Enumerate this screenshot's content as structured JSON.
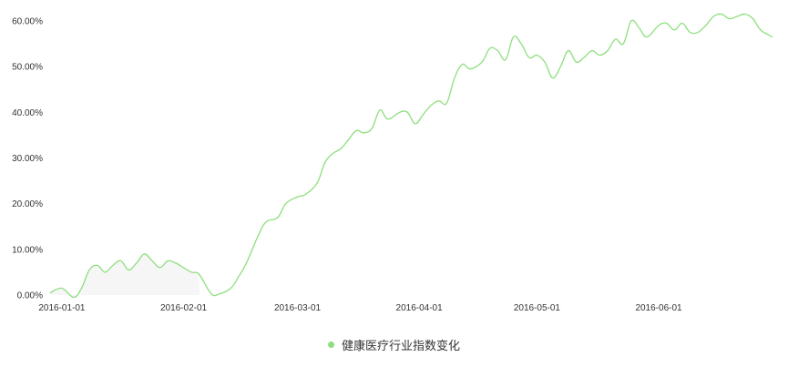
{
  "colors": {
    "line": "#8ddf7d",
    "fill": "#f6f6f6",
    "axis_text": "#333333"
  },
  "chart_data": {
    "type": "line",
    "y_tick_labels": [
      "0.00%",
      "10.00%",
      "20.00%",
      "30.00%",
      "40.00%",
      "50.00%",
      "60.00%"
    ],
    "x_tick_labels": [
      "2016-01-01",
      "2016-02-01",
      "2016-03-01",
      "2016-04-01",
      "2016-05-01",
      "2016-06-01"
    ],
    "x_tick_dates": [
      "2016-01-01",
      "2016-02-01",
      "2016-03-01",
      "2016-04-01",
      "2016-05-01",
      "2016-06-01"
    ],
    "ylim": [
      0,
      60
    ],
    "xlim": [
      "2015-12-29",
      "2016-06-30"
    ],
    "grid": false,
    "legend_position": "bottom",
    "series": [
      {
        "name": "健康医疗行业指数变化",
        "x": [
          "2015-12-29",
          "2016-01-01",
          "2016-01-04",
          "2016-01-06",
          "2016-01-08",
          "2016-01-10",
          "2016-01-12",
          "2016-01-14",
          "2016-01-16",
          "2016-01-18",
          "2016-01-20",
          "2016-01-22",
          "2016-01-24",
          "2016-01-26",
          "2016-01-28",
          "2016-01-30",
          "2016-02-01",
          "2016-02-03",
          "2016-02-05",
          "2016-02-08",
          "2016-02-10",
          "2016-02-13",
          "2016-02-15",
          "2016-02-17",
          "2016-02-20",
          "2016-02-22",
          "2016-02-25",
          "2016-02-27",
          "2016-03-01",
          "2016-03-03",
          "2016-03-06",
          "2016-03-08",
          "2016-03-10",
          "2016-03-12",
          "2016-03-14",
          "2016-03-16",
          "2016-03-18",
          "2016-03-20",
          "2016-03-22",
          "2016-03-24",
          "2016-03-27",
          "2016-03-29",
          "2016-03-31",
          "2016-04-02",
          "2016-04-04",
          "2016-04-06",
          "2016-04-08",
          "2016-04-10",
          "2016-04-12",
          "2016-04-14",
          "2016-04-17",
          "2016-04-19",
          "2016-04-21",
          "2016-04-23",
          "2016-04-25",
          "2016-04-27",
          "2016-04-29",
          "2016-05-01",
          "2016-05-03",
          "2016-05-05",
          "2016-05-07",
          "2016-05-09",
          "2016-05-11",
          "2016-05-13",
          "2016-05-15",
          "2016-05-17",
          "2016-05-19",
          "2016-05-21",
          "2016-05-23",
          "2016-05-25",
          "2016-05-27",
          "2016-05-29",
          "2016-06-01",
          "2016-06-03",
          "2016-06-05",
          "2016-06-07",
          "2016-06-09",
          "2016-06-11",
          "2016-06-13",
          "2016-06-15",
          "2016-06-17",
          "2016-06-19",
          "2016-06-21",
          "2016-06-23",
          "2016-06-25",
          "2016-06-27",
          "2016-06-30"
        ],
        "values": [
          0.5,
          1.5,
          -0.5,
          1.5,
          5.5,
          6.5,
          5.0,
          6.5,
          7.5,
          5.5,
          7.0,
          9.0,
          7.5,
          6.0,
          7.5,
          7.0,
          6.0,
          5.0,
          4.5,
          0.3,
          0.2,
          1.5,
          4.0,
          7.0,
          13.0,
          16.0,
          17.0,
          20.0,
          21.5,
          22.0,
          24.5,
          29.0,
          31.0,
          32.0,
          34.0,
          36.0,
          35.5,
          36.5,
          40.5,
          38.5,
          40.0,
          40.0,
          37.5,
          39.5,
          41.5,
          42.5,
          42.0,
          47.5,
          50.5,
          49.5,
          51.0,
          54.0,
          53.5,
          51.5,
          56.5,
          55.0,
          52.0,
          52.5,
          51.0,
          47.5,
          50.0,
          53.5,
          51.0,
          52.0,
          53.5,
          52.5,
          53.5,
          56.0,
          55.0,
          60.0,
          58.5,
          56.5,
          59.0,
          59.5,
          58.0,
          59.5,
          57.5,
          57.5,
          59.0,
          61.0,
          61.5,
          60.5,
          61.0,
          61.5,
          60.5,
          58.0,
          56.5
        ]
      }
    ]
  },
  "legend": {
    "label": "健康医疗行业指数变化"
  }
}
